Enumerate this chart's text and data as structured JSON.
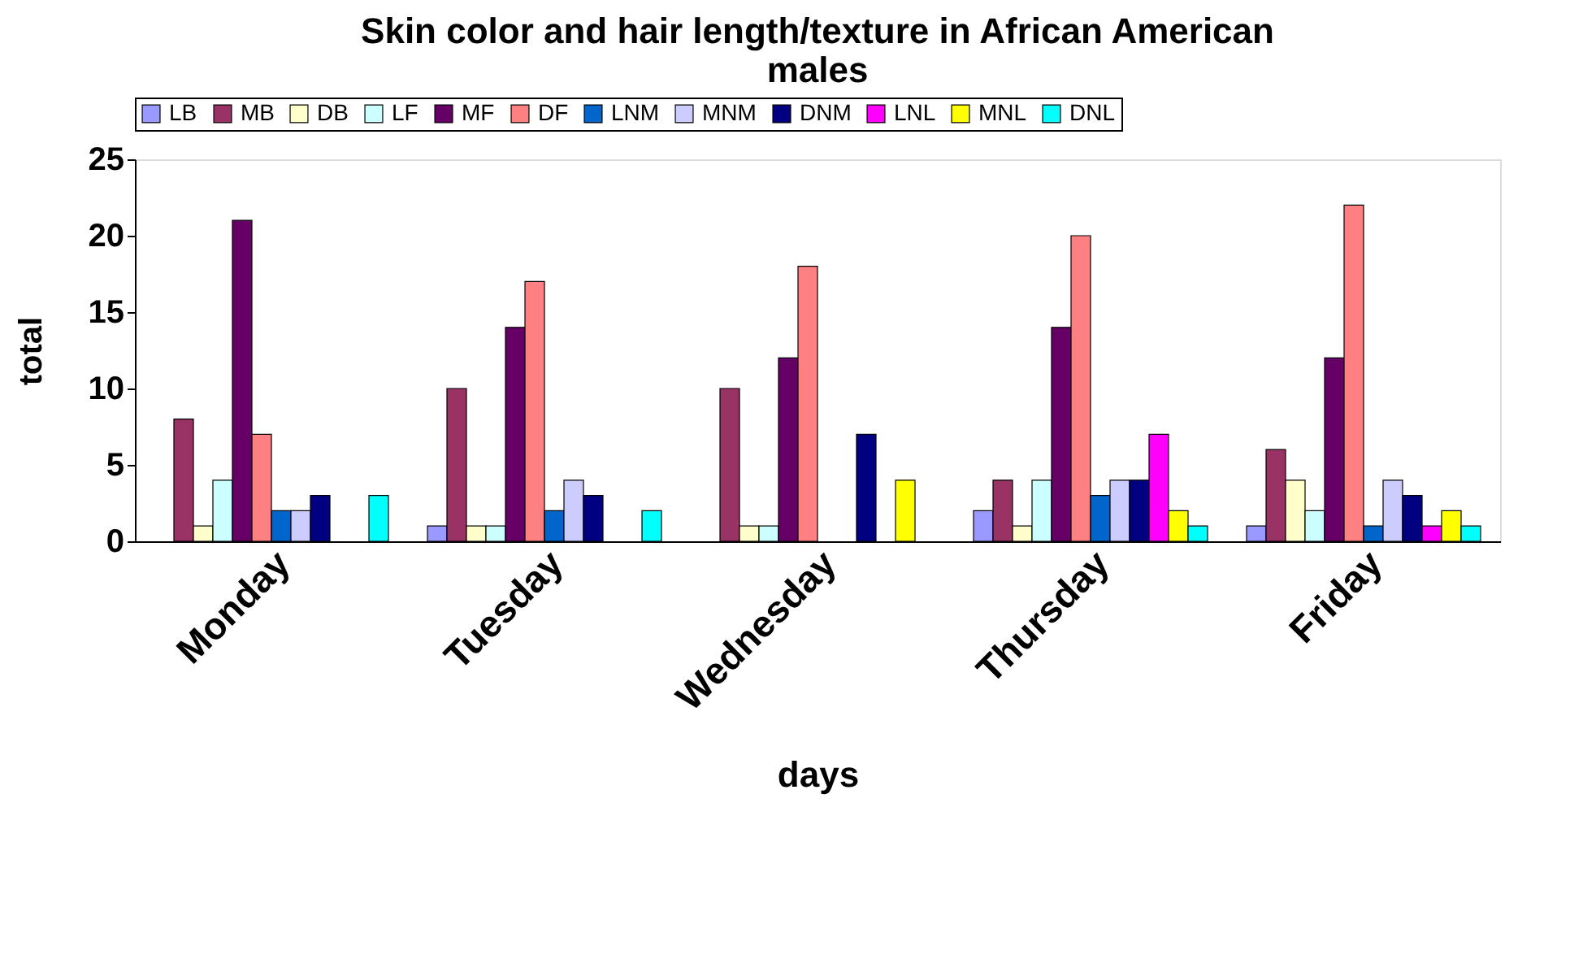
{
  "chart_data": {
    "type": "bar",
    "title": "Skin color and hair length/texture in African American males",
    "xlabel": "days",
    "ylabel": "total",
    "categories": [
      "Monday",
      "Tuesday",
      "Wednesday",
      "Thursday",
      "Friday"
    ],
    "series": [
      {
        "name": "LB",
        "color": "#9999ff",
        "values": [
          0,
          1,
          0,
          2,
          1
        ]
      },
      {
        "name": "MB",
        "color": "#993366",
        "values": [
          8,
          10,
          10,
          4,
          6
        ]
      },
      {
        "name": "DB",
        "color": "#ffffcc",
        "values": [
          1,
          1,
          1,
          1,
          4
        ]
      },
      {
        "name": "LF",
        "color": "#ccffff",
        "values": [
          4,
          1,
          1,
          4,
          2
        ]
      },
      {
        "name": "MF",
        "color": "#660066",
        "values": [
          21,
          14,
          12,
          14,
          12
        ]
      },
      {
        "name": "DF",
        "color": "#ff8080",
        "values": [
          7,
          17,
          18,
          20,
          22
        ]
      },
      {
        "name": "LNM",
        "color": "#0066cc",
        "values": [
          2,
          2,
          0,
          3,
          1
        ]
      },
      {
        "name": "MNM",
        "color": "#ccccff",
        "values": [
          2,
          4,
          0,
          4,
          4
        ]
      },
      {
        "name": "DNM",
        "color": "#000080",
        "values": [
          3,
          3,
          7,
          4,
          3
        ]
      },
      {
        "name": "LNL",
        "color": "#ff00ff",
        "values": [
          0,
          0,
          0,
          7,
          1
        ]
      },
      {
        "name": "MNL",
        "color": "#ffff00",
        "values": [
          0,
          0,
          4,
          2,
          2
        ]
      },
      {
        "name": "DNL",
        "color": "#00ffff",
        "values": [
          3,
          2,
          0,
          1,
          1
        ]
      }
    ],
    "ylim": [
      0,
      25
    ],
    "yticks": [
      0,
      5,
      10,
      15,
      20,
      25
    ],
    "grid": false,
    "legend": "top"
  }
}
